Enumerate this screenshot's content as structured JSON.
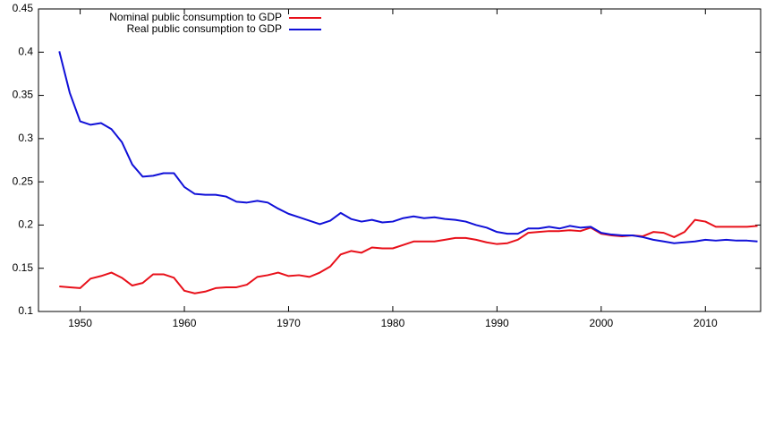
{
  "chart_data": {
    "type": "line",
    "x": [
      1948,
      1949,
      1950,
      1951,
      1952,
      1953,
      1954,
      1955,
      1956,
      1957,
      1958,
      1959,
      1960,
      1961,
      1962,
      1963,
      1964,
      1965,
      1966,
      1967,
      1968,
      1969,
      1970,
      1971,
      1972,
      1973,
      1974,
      1975,
      1976,
      1977,
      1978,
      1979,
      1980,
      1981,
      1982,
      1983,
      1984,
      1985,
      1986,
      1987,
      1988,
      1989,
      1990,
      1991,
      1992,
      1993,
      1994,
      1995,
      1996,
      1997,
      1998,
      1999,
      2000,
      2001,
      2002,
      2003,
      2004,
      2005,
      2006,
      2007,
      2008,
      2009,
      2010,
      2011,
      2012,
      2013,
      2014,
      2015
    ],
    "series": [
      {
        "name": "Nominal public consumption to GDP",
        "color": "#e8101a",
        "values": [
          0.129,
          0.128,
          0.127,
          0.138,
          0.141,
          0.145,
          0.139,
          0.13,
          0.133,
          0.143,
          0.143,
          0.139,
          0.124,
          0.121,
          0.123,
          0.127,
          0.128,
          0.128,
          0.131,
          0.14,
          0.142,
          0.145,
          0.141,
          0.142,
          0.14,
          0.145,
          0.152,
          0.166,
          0.17,
          0.168,
          0.174,
          0.173,
          0.173,
          0.177,
          0.181,
          0.181,
          0.181,
          0.183,
          0.185,
          0.185,
          0.183,
          0.18,
          0.178,
          0.179,
          0.183,
          0.191,
          0.192,
          0.193,
          0.193,
          0.194,
          0.193,
          0.197,
          0.19,
          0.188,
          0.187,
          0.188,
          0.187,
          0.192,
          0.191,
          0.186,
          0.192,
          0.206,
          0.204,
          0.198,
          0.198,
          0.198,
          0.198,
          0.199
        ]
      },
      {
        "name": "Real public consumption to GDP",
        "color": "#1010d8",
        "values": [
          0.401,
          0.353,
          0.32,
          0.316,
          0.318,
          0.311,
          0.296,
          0.27,
          0.256,
          0.257,
          0.26,
          0.26,
          0.244,
          0.236,
          0.235,
          0.235,
          0.233,
          0.227,
          0.226,
          0.228,
          0.226,
          0.219,
          0.213,
          0.209,
          0.205,
          0.201,
          0.205,
          0.214,
          0.207,
          0.204,
          0.206,
          0.203,
          0.204,
          0.208,
          0.21,
          0.208,
          0.209,
          0.207,
          0.206,
          0.204,
          0.2,
          0.197,
          0.192,
          0.19,
          0.19,
          0.196,
          0.196,
          0.198,
          0.196,
          0.199,
          0.197,
          0.198,
          0.191,
          0.189,
          0.188,
          0.188,
          0.186,
          0.183,
          0.181,
          0.179,
          0.18,
          0.181,
          0.183,
          0.182,
          0.183,
          0.182,
          0.182,
          0.181
        ]
      }
    ],
    "xlim": [
      1946,
      2015.3
    ],
    "ylim": [
      0.1,
      0.45
    ],
    "xticks": [
      1950,
      1960,
      1970,
      1980,
      1990,
      2000,
      2010
    ],
    "yticks": [
      0.1,
      0.15,
      0.2,
      0.25,
      0.3,
      0.35,
      0.4,
      0.45
    ],
    "legend": "top-left"
  }
}
